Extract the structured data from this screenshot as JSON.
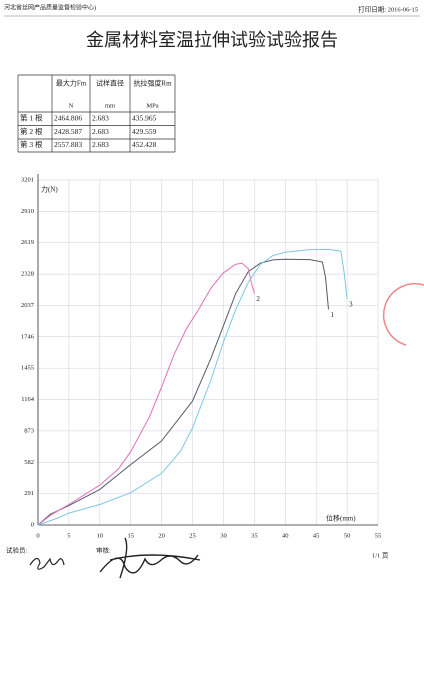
{
  "header": {
    "org": "河北省丝网产品质量监督检验中心)",
    "print_date": "打印日期: 2016-06-15"
  },
  "title": "金属材料室温拉伸试验试验报告",
  "table": {
    "headers": [
      "最大力Fm",
      "试样直径",
      "抗拉强度Rm"
    ],
    "units": [
      "N",
      "mm",
      "MPa"
    ],
    "rows": [
      [
        "第 1 根",
        "2464.806",
        "2.683",
        "435.965"
      ],
      [
        "第 2 根",
        "2428.587",
        "2.683",
        "429.559"
      ],
      [
        "第 3 根",
        "2557.883",
        "2.683",
        "452.428"
      ]
    ]
  },
  "chart_data": {
    "type": "line",
    "y_label": "力(N)",
    "x_label": "位移(mm)",
    "xlim": [
      0,
      55
    ],
    "ylim": [
      0,
      3201
    ],
    "xticks": [
      0,
      5,
      10,
      15,
      20,
      25,
      30,
      35,
      40,
      45,
      50,
      55
    ],
    "yticks": [
      0,
      291,
      582,
      873,
      1164,
      1455,
      1746,
      2037,
      2328,
      2619,
      2910,
      3201
    ],
    "grid": true,
    "series": [
      {
        "name": "1",
        "color": "#555b66",
        "x": [
          0,
          2,
          5,
          10,
          15,
          20,
          25,
          28,
          30,
          32,
          34,
          36,
          38,
          40,
          44,
          46,
          46.5,
          47
        ],
        "values": [
          0,
          100,
          180,
          330,
          560,
          780,
          1150,
          1550,
          1850,
          2150,
          2350,
          2430,
          2460,
          2465,
          2462,
          2440,
          2300,
          2000
        ]
      },
      {
        "name": "2",
        "color": "#e070b8",
        "x": [
          0,
          2,
          5,
          10,
          13,
          15,
          18,
          20,
          22,
          24,
          26,
          28,
          30,
          32,
          33,
          34,
          34.5,
          35
        ],
        "values": [
          0,
          90,
          190,
          370,
          520,
          680,
          1000,
          1280,
          1580,
          1820,
          2000,
          2200,
          2340,
          2420,
          2428,
          2380,
          2250,
          2150
        ]
      },
      {
        "name": "3",
        "color": "#7cc8e0",
        "x": [
          0,
          3,
          5,
          10,
          15,
          20,
          23,
          25,
          28,
          30,
          32,
          34,
          36,
          38,
          40,
          44,
          47,
          49,
          49.5,
          50
        ],
        "values": [
          0,
          60,
          110,
          190,
          300,
          480,
          680,
          900,
          1350,
          1700,
          2000,
          2250,
          2420,
          2500,
          2530,
          2555,
          2557,
          2540,
          2350,
          2100
        ]
      }
    ]
  },
  "footer": {
    "tester": "试验员:",
    "reviewer": "审核:",
    "page": "1/1 页"
  }
}
